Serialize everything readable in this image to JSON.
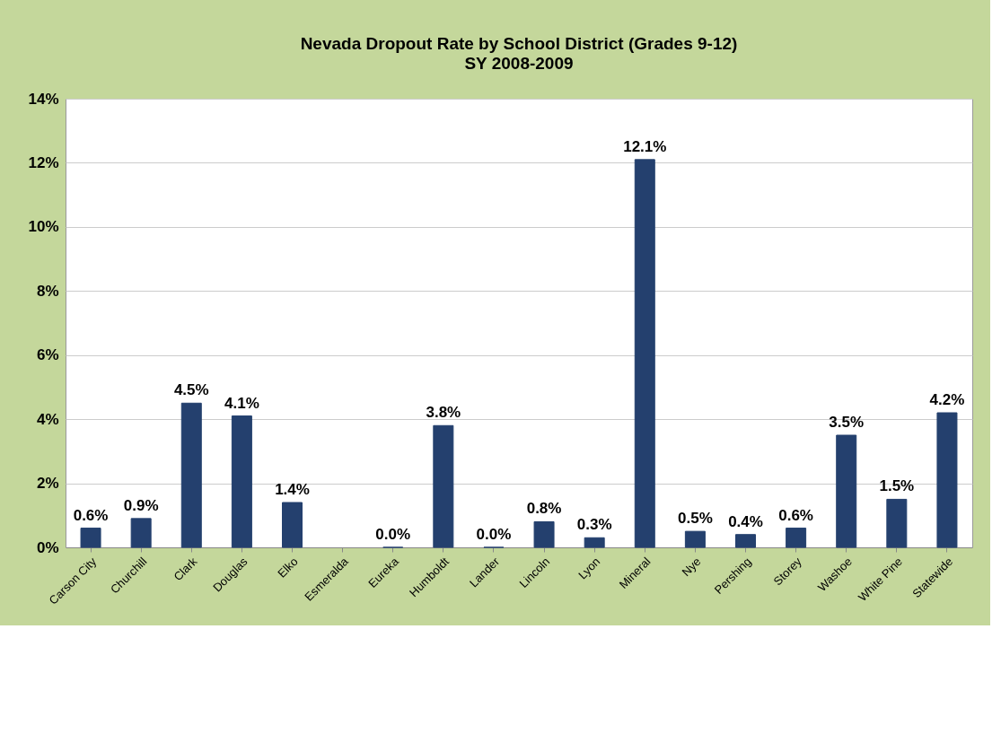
{
  "chart_data": {
    "type": "bar",
    "title": "Nevada Dropout Rate by School District (Grades 9-12)",
    "subtitle": "SY 2008-2009",
    "categories": [
      "Carson City",
      "Churchill",
      "Clark",
      "Douglas",
      "Elko",
      "Esmeralda",
      "Eureka",
      "Humboldt",
      "Lander",
      "Lincoln",
      "Lyon",
      "Mineral",
      "Nye",
      "Pershing",
      "Storey",
      "Washoe",
      "White Pine",
      "Statewide"
    ],
    "values": [
      0.6,
      0.9,
      4.5,
      4.1,
      1.4,
      null,
      0.0,
      3.8,
      0.0,
      0.8,
      0.3,
      12.1,
      0.5,
      0.4,
      0.6,
      3.5,
      1.5,
      4.2
    ],
    "value_labels": [
      "0.6%",
      "0.9%",
      "4.5%",
      "4.1%",
      "1.4%",
      null,
      "0.0%",
      "3.8%",
      "0.0%",
      "0.8%",
      "0.3%",
      "12.1%",
      "0.5%",
      "0.4%",
      "0.6%",
      "3.5%",
      "1.5%",
      "4.2%"
    ],
    "color": "#24406e",
    "ylim": [
      0,
      14
    ],
    "yticks": [
      {
        "value": 0,
        "label": "0%"
      },
      {
        "value": 2,
        "label": "2%"
      },
      {
        "value": 4,
        "label": "4%"
      },
      {
        "value": 6,
        "label": "6%"
      },
      {
        "value": 8,
        "label": "8%"
      },
      {
        "value": 10,
        "label": "10%"
      },
      {
        "value": 12,
        "label": "12%"
      },
      {
        "value": 14,
        "label": "14%"
      }
    ],
    "grid": "y"
  }
}
